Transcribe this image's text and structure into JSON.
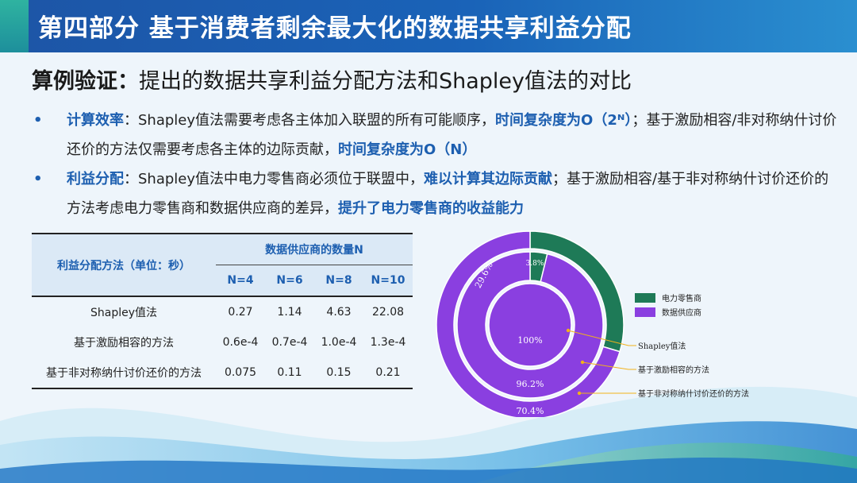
{
  "header": {
    "title": "第四部分  基于消费者剩余最大化的数据共享利益分配"
  },
  "subtitle": {
    "bold": "算例验证：",
    "rest": "提出的数据共享利益分配方法和Shapley值法的对比"
  },
  "bullets": [
    {
      "marker": "•",
      "label": "计算效率",
      "t1": "：Shapley值法需要考虑各主体加入联盟的所有可能顺序，",
      "h1": "时间复杂度为O（2ᴺ）",
      "t2": "；基于激励相容/非对称纳什讨价还价的方法仅需要考虑各主体的边际贡献，",
      "h2": "时间复杂度为O（N）",
      "t3": ""
    },
    {
      "marker": "•",
      "label": "利益分配",
      "t1": "：Shapley值法中电力零售商必须位于联盟中，",
      "h1": "难以计算其边际贡献",
      "t2": "；基于激励相容/基于非对称纳什讨价还价的方法考虑电力零售商和数据供应商的差异，",
      "h2": "提升了电力零售商的收益能力",
      "t3": ""
    }
  ],
  "table": {
    "corner": "利益分配方法（单位：秒）",
    "group_header": "数据供应商的数量N",
    "columns": [
      "N=4",
      "N=6",
      "N=8",
      "N=10"
    ],
    "rows": [
      {
        "method": "Shapley值法",
        "values": [
          "0.27",
          "1.14",
          "4.63",
          "22.08"
        ]
      },
      {
        "method": "基于激励相容的方法",
        "values": [
          "0.6e-4",
          "0.7e-4",
          "1.0e-4",
          "1.3e-4"
        ]
      },
      {
        "method": "基于非对称纳什讨价还价的方法",
        "values": [
          "0.075",
          "0.11",
          "0.15",
          "0.21"
        ]
      }
    ]
  },
  "chart_data": {
    "type": "pie",
    "series": [
      {
        "name": "Shapley值法",
        "values": [
          0,
          100
        ],
        "labels": [
          "",
          "100%"
        ]
      },
      {
        "name": "基于激励相容的方法",
        "values": [
          3.8,
          96.2
        ],
        "labels": [
          "3.8%",
          "96.2%"
        ]
      },
      {
        "name": "基于非对称纳什讨价还价的方法",
        "values": [
          29.6,
          70.4
        ],
        "labels": [
          "29.6%",
          "70.4%"
        ]
      }
    ],
    "categories": [
      "电力零售商",
      "数据供应商"
    ],
    "legend": [
      {
        "name": "电力零售商",
        "color": "#1e7a57"
      },
      {
        "name": "数据供应商",
        "color": "#8a3fe0"
      }
    ],
    "legend_position": "right",
    "annotations": [
      "Shapley值法",
      "基于激励相容的方法",
      "基于非对称纳什讨价还价的方法"
    ]
  },
  "colors": {
    "accent": "#1d5fb0",
    "retailer": "#1e7a57",
    "supplier": "#8a3fe0",
    "leader": "#f2b21a"
  }
}
